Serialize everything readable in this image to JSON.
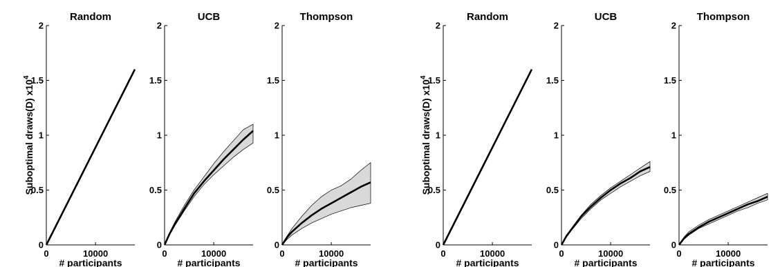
{
  "figure": {
    "ylabel": "Suboptimal draws(D)",
    "yscale_prefix": "x10",
    "yscale_exp": "4"
  },
  "chart_data": [
    {
      "type": "line",
      "group": "left",
      "title": "Random",
      "xlabel": "# participants",
      "ylabel": "Suboptimal draws(D) x10^4",
      "xlim": [
        0,
        18000
      ],
      "ylim": [
        0,
        2
      ],
      "xticks": [
        0,
        10000
      ],
      "yticks": [
        0,
        0.5,
        1,
        1.5,
        2
      ],
      "x": [
        0,
        18000
      ],
      "mean": [
        0,
        1.6
      ],
      "lower": [
        0,
        1.6
      ],
      "upper": [
        0,
        1.6
      ],
      "band": false,
      "grid": false
    },
    {
      "type": "line",
      "group": "left",
      "title": "UCB",
      "xlabel": "# participants",
      "xlim": [
        0,
        18000
      ],
      "ylim": [
        0,
        2
      ],
      "xticks": [
        0,
        10000
      ],
      "yticks": [
        0,
        0.5,
        1,
        1.5,
        2
      ],
      "x": [
        0,
        1000,
        2000,
        4000,
        6000,
        8000,
        10000,
        12000,
        14000,
        16000,
        18000
      ],
      "mean": [
        0,
        0.1,
        0.18,
        0.33,
        0.47,
        0.58,
        0.68,
        0.78,
        0.87,
        0.96,
        1.04
      ],
      "lower": [
        0,
        0.09,
        0.17,
        0.31,
        0.44,
        0.55,
        0.64,
        0.72,
        0.8,
        0.87,
        0.93
      ],
      "upper": [
        0,
        0.11,
        0.2,
        0.36,
        0.5,
        0.62,
        0.74,
        0.85,
        0.95,
        1.05,
        1.1
      ],
      "band": true,
      "grid": false
    },
    {
      "type": "line",
      "group": "left",
      "title": "Thompson",
      "xlabel": "# participants",
      "xlim": [
        0,
        18000
      ],
      "ylim": [
        0,
        2
      ],
      "xticks": [
        0,
        10000
      ],
      "yticks": [
        0,
        0.5,
        1,
        1.5,
        2
      ],
      "x": [
        0,
        1000,
        2000,
        4000,
        6000,
        8000,
        10000,
        12000,
        14000,
        16000,
        18000
      ],
      "mean": [
        0,
        0.07,
        0.12,
        0.2,
        0.27,
        0.33,
        0.38,
        0.43,
        0.48,
        0.53,
        0.57
      ],
      "lower": [
        0,
        0.05,
        0.09,
        0.15,
        0.2,
        0.24,
        0.28,
        0.31,
        0.34,
        0.36,
        0.38
      ],
      "upper": [
        0,
        0.08,
        0.15,
        0.26,
        0.36,
        0.44,
        0.5,
        0.54,
        0.6,
        0.68,
        0.75
      ],
      "band": true,
      "grid": false
    },
    {
      "type": "line",
      "group": "right",
      "title": "Random",
      "xlabel": "# participants",
      "ylabel": "Suboptimal draws(D) x10^4",
      "xlim": [
        0,
        18000
      ],
      "ylim": [
        0,
        2
      ],
      "xticks": [
        0,
        10000
      ],
      "yticks": [
        0,
        0.5,
        1,
        1.5,
        2
      ],
      "x": [
        0,
        18000
      ],
      "mean": [
        0,
        1.6
      ],
      "lower": [
        0,
        1.6
      ],
      "upper": [
        0,
        1.6
      ],
      "band": false,
      "grid": false
    },
    {
      "type": "line",
      "group": "right",
      "title": "UCB",
      "xlabel": "# participants",
      "xlim": [
        0,
        18000
      ],
      "ylim": [
        0,
        2
      ],
      "xticks": [
        0,
        10000
      ],
      "yticks": [
        0,
        0.5,
        1,
        1.5,
        2
      ],
      "x": [
        0,
        1000,
        2000,
        4000,
        6000,
        8000,
        10000,
        12000,
        14000,
        16000,
        18000
      ],
      "mean": [
        0,
        0.08,
        0.14,
        0.26,
        0.35,
        0.43,
        0.5,
        0.56,
        0.61,
        0.67,
        0.71
      ],
      "lower": [
        0,
        0.07,
        0.13,
        0.24,
        0.33,
        0.41,
        0.47,
        0.53,
        0.58,
        0.63,
        0.67
      ],
      "upper": [
        0,
        0.09,
        0.15,
        0.27,
        0.37,
        0.45,
        0.52,
        0.58,
        0.64,
        0.7,
        0.76
      ],
      "band": true,
      "grid": false
    },
    {
      "type": "line",
      "group": "right",
      "title": "Thompson",
      "xlabel": "# participants",
      "xlim": [
        0,
        18000
      ],
      "ylim": [
        0,
        2
      ],
      "xticks": [
        0,
        10000
      ],
      "yticks": [
        0,
        0.5,
        1,
        1.5,
        2
      ],
      "x": [
        0,
        1000,
        2000,
        4000,
        6000,
        8000,
        10000,
        12000,
        14000,
        16000,
        18000
      ],
      "mean": [
        0,
        0.06,
        0.1,
        0.16,
        0.21,
        0.25,
        0.29,
        0.33,
        0.37,
        0.4,
        0.44
      ],
      "lower": [
        0,
        0.05,
        0.09,
        0.15,
        0.19,
        0.23,
        0.27,
        0.31,
        0.34,
        0.38,
        0.41
      ],
      "upper": [
        0,
        0.07,
        0.12,
        0.18,
        0.23,
        0.27,
        0.31,
        0.35,
        0.39,
        0.43,
        0.47
      ],
      "band": true,
      "grid": false
    }
  ]
}
